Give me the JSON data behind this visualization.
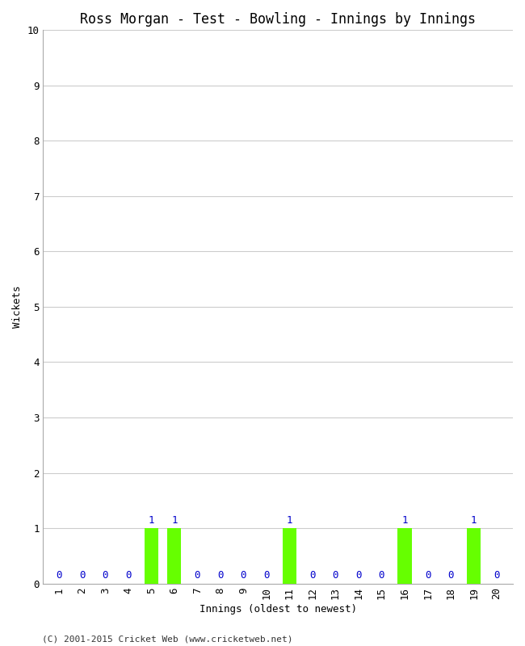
{
  "title": "Ross Morgan - Test - Bowling - Innings by Innings",
  "xlabel": "Innings (oldest to newest)",
  "ylabel": "Wickets",
  "innings": [
    1,
    2,
    3,
    4,
    5,
    6,
    7,
    8,
    9,
    10,
    11,
    12,
    13,
    14,
    15,
    16,
    17,
    18,
    19,
    20
  ],
  "wickets": [
    0,
    0,
    0,
    0,
    1,
    1,
    0,
    0,
    0,
    0,
    1,
    0,
    0,
    0,
    0,
    1,
    0,
    0,
    1,
    0
  ],
  "bar_color": "#66ff00",
  "label_color": "#0000cc",
  "ylim": [
    0,
    10
  ],
  "yticks": [
    0,
    1,
    2,
    3,
    4,
    5,
    6,
    7,
    8,
    9,
    10
  ],
  "background_color": "#ffffff",
  "grid_color": "#cccccc",
  "footer": "(C) 2001-2015 Cricket Web (www.cricketweb.net)",
  "title_fontsize": 12,
  "label_fontsize": 9,
  "tick_fontsize": 9,
  "footer_fontsize": 8,
  "bar_width": 0.6
}
